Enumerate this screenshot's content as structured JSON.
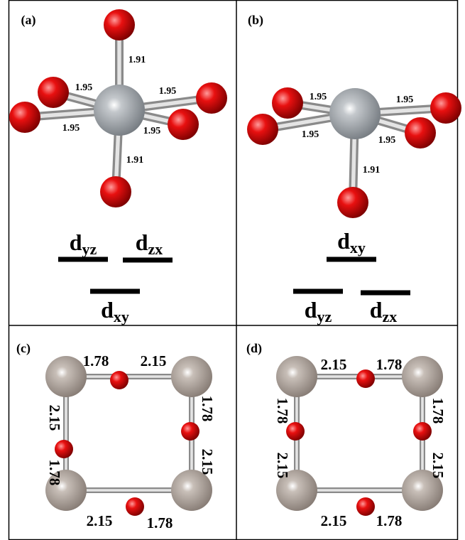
{
  "panels": [
    {
      "label": "(a)",
      "bonds": [
        "1.91",
        "1.95",
        "1.95",
        "1.95",
        "1.95",
        "1.91"
      ],
      "levels": [
        {
          "main": "d",
          "sub": "yz"
        },
        {
          "main": "d",
          "sub": "zx"
        },
        {
          "main": "d",
          "sub": "xy"
        }
      ]
    },
    {
      "label": "(b)",
      "bonds": [
        "1.95",
        "1.95",
        "1.95",
        "1.95",
        "1.91"
      ],
      "levels": [
        {
          "main": "d",
          "sub": "xy"
        },
        {
          "main": "d",
          "sub": "yz"
        },
        {
          "main": "d",
          "sub": "zx"
        }
      ]
    },
    {
      "label": "(c)",
      "bonds": [
        "1.78",
        "2.15",
        "1.78",
        "2.15",
        "2.15",
        "1.78",
        "2.15",
        "1.78"
      ]
    },
    {
      "label": "(d)",
      "bonds": [
        "2.15",
        "1.78",
        "1.78",
        "2.15",
        "1.78",
        "2.15",
        "2.15",
        "1.78"
      ]
    }
  ]
}
